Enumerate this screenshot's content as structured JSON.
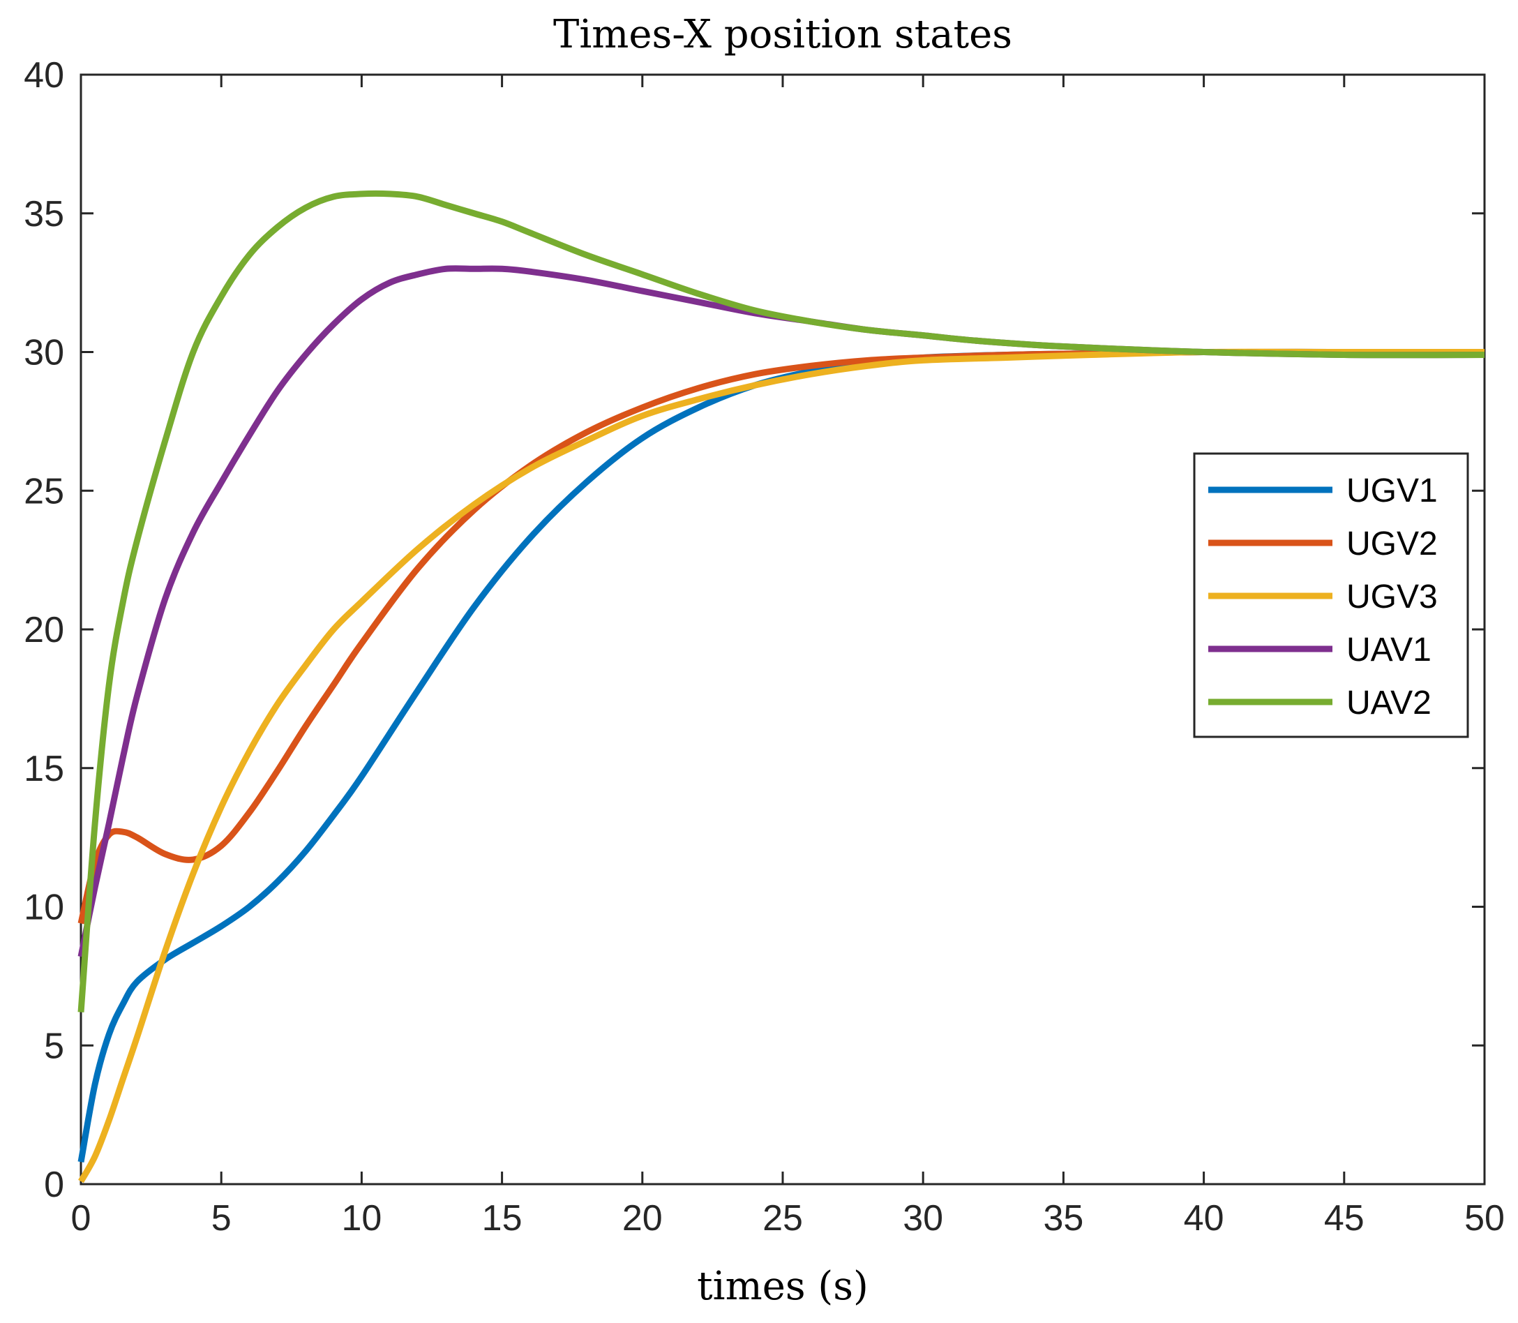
{
  "chart_data": {
    "type": "line",
    "title": "Times-X position states",
    "xlabel": "times (s)",
    "ylabel": "",
    "xlim": [
      0,
      50
    ],
    "ylim": [
      0,
      40
    ],
    "xticks": [
      0,
      5,
      10,
      15,
      20,
      25,
      30,
      35,
      40,
      45,
      50
    ],
    "yticks": [
      0,
      5,
      10,
      15,
      20,
      25,
      30,
      35,
      40
    ],
    "grid": false,
    "legend": "right",
    "series": [
      {
        "name": "UGV1",
        "color": "#0072BD",
        "x": [
          0,
          0.5,
          1,
          1.5,
          2,
          3,
          4,
          5,
          6,
          7,
          8,
          9,
          10,
          12,
          14,
          16,
          18,
          20,
          22,
          24,
          26,
          28,
          30,
          33,
          36,
          40,
          45,
          50
        ],
        "y": [
          0.8,
          3.6,
          5.4,
          6.5,
          7.3,
          8.1,
          8.7,
          9.3,
          10.0,
          10.9,
          12.0,
          13.3,
          14.7,
          17.8,
          20.8,
          23.3,
          25.3,
          26.9,
          28.0,
          28.8,
          29.3,
          29.6,
          29.8,
          29.9,
          29.95,
          30.0,
          30.0,
          30.0
        ]
      },
      {
        "name": "UGV2",
        "color": "#D95319",
        "x": [
          0,
          0.5,
          1,
          1.5,
          2,
          3,
          4,
          5,
          6,
          7,
          8,
          9,
          10,
          12,
          14,
          16,
          18,
          20,
          22,
          24,
          26,
          28,
          30,
          33,
          36,
          40,
          45,
          50
        ],
        "y": [
          9.4,
          11.6,
          12.6,
          12.7,
          12.5,
          11.9,
          11.7,
          12.2,
          13.4,
          14.9,
          16.5,
          18.0,
          19.5,
          22.2,
          24.3,
          25.9,
          27.1,
          28.0,
          28.7,
          29.2,
          29.5,
          29.7,
          29.8,
          29.9,
          29.95,
          30.0,
          30.0,
          30.0
        ]
      },
      {
        "name": "UGV3",
        "color": "#EDB120",
        "x": [
          0,
          0.5,
          1,
          1.5,
          2,
          3,
          4,
          5,
          6,
          7,
          8,
          9,
          10,
          12,
          14,
          16,
          18,
          20,
          22,
          24,
          26,
          28,
          30,
          33,
          36,
          40,
          45,
          50
        ],
        "y": [
          0.1,
          1.0,
          2.3,
          3.8,
          5.3,
          8.4,
          11.2,
          13.6,
          15.6,
          17.3,
          18.7,
          20.0,
          21.0,
          22.9,
          24.5,
          25.8,
          26.8,
          27.7,
          28.3,
          28.8,
          29.2,
          29.5,
          29.7,
          29.8,
          29.9,
          30.0,
          30.0,
          30.0
        ]
      },
      {
        "name": "UAV1",
        "color": "#7E2F8E",
        "x": [
          0,
          0.5,
          1,
          1.5,
          2,
          3,
          4,
          5,
          6,
          7,
          8,
          9,
          10,
          11,
          12,
          13,
          14,
          15,
          16,
          18,
          20,
          22,
          24,
          26,
          28,
          30,
          32,
          35,
          40,
          45,
          50
        ],
        "y": [
          8.2,
          10.7,
          13.0,
          15.4,
          17.6,
          21.1,
          23.5,
          25.3,
          27.0,
          28.6,
          29.9,
          31.0,
          31.9,
          32.5,
          32.8,
          33.0,
          33.0,
          33.0,
          32.9,
          32.6,
          32.2,
          31.8,
          31.4,
          31.1,
          30.8,
          30.6,
          30.4,
          30.2,
          30.0,
          29.9,
          29.9
        ]
      },
      {
        "name": "UAV2",
        "color": "#77AC30",
        "x": [
          0,
          0.5,
          1,
          1.5,
          2,
          3,
          4,
          5,
          6,
          7,
          8,
          9,
          10,
          11,
          12,
          13,
          14,
          15,
          16,
          18,
          20,
          22,
          24,
          26,
          28,
          30,
          32,
          35,
          40,
          45,
          50
        ],
        "y": [
          6.2,
          13.0,
          18.0,
          21.0,
          23.2,
          26.8,
          30.0,
          32.0,
          33.5,
          34.5,
          35.2,
          35.6,
          35.7,
          35.7,
          35.6,
          35.3,
          35.0,
          34.7,
          34.3,
          33.5,
          32.8,
          32.1,
          31.5,
          31.1,
          30.8,
          30.6,
          30.4,
          30.2,
          30.0,
          29.9,
          29.9
        ]
      }
    ]
  }
}
